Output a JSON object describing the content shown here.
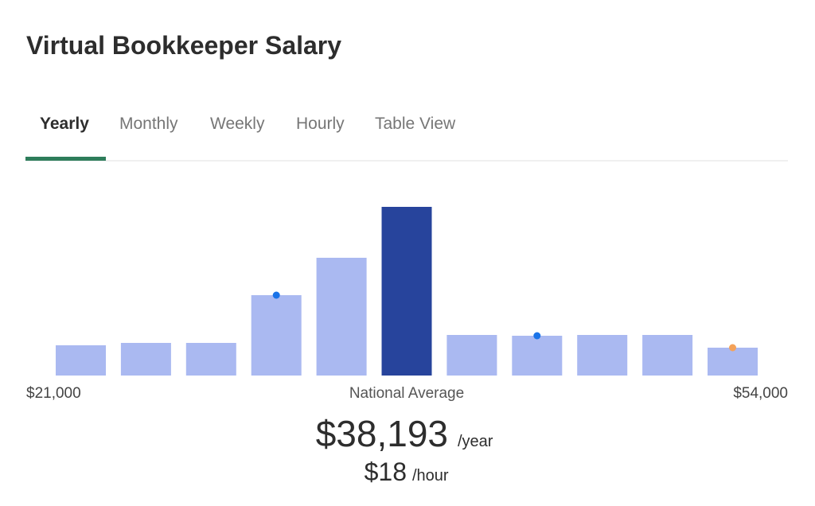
{
  "header": {
    "title": "Virtual Bookkeeper Salary"
  },
  "tabs": {
    "items": [
      "Yearly",
      "Monthly",
      "Weekly",
      "Hourly",
      "Table View"
    ],
    "active": "Yearly"
  },
  "chart_data": {
    "type": "bar",
    "values": [
      38,
      41,
      41,
      101,
      148,
      212,
      51,
      50,
      51,
      51,
      35
    ],
    "ylim": [
      0,
      212
    ],
    "color": "#aab9f1",
    "highlight_color": "#27449c",
    "highlight_index": 5,
    "markers": [
      {
        "index": 3,
        "color": "#1a73e8"
      },
      {
        "index": 7,
        "color": "#1a73e8"
      },
      {
        "index": 10,
        "color": "#f4a259"
      }
    ],
    "min_label": "$21,000",
    "center_label": "National Average",
    "max_label": "$54,000"
  },
  "summary": {
    "yearly": "$38,193",
    "yearly_unit": "/year",
    "hourly": "$18",
    "hourly_unit": "/hour"
  }
}
